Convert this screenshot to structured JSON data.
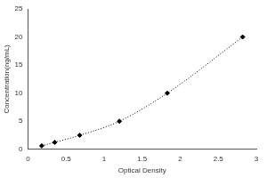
{
  "chart_data": {
    "type": "scatter",
    "x_label": "Optical Density",
    "y_label": "Concentration(ng/mL)",
    "x": [
      0.18,
      0.35,
      0.68,
      1.2,
      1.83,
      2.82
    ],
    "values": [
      0.625,
      1.25,
      2.5,
      5,
      10,
      20
    ],
    "color": "#000000",
    "marker": "diamond",
    "line_style": "dotted",
    "xlim": [
      0,
      3
    ],
    "xticks": [
      0,
      0.5,
      1,
      1.5,
      2,
      2.5,
      3
    ],
    "ylim": [
      0,
      25
    ],
    "yticks": [
      0,
      5,
      10,
      15,
      20,
      25
    ],
    "grid": false
  }
}
